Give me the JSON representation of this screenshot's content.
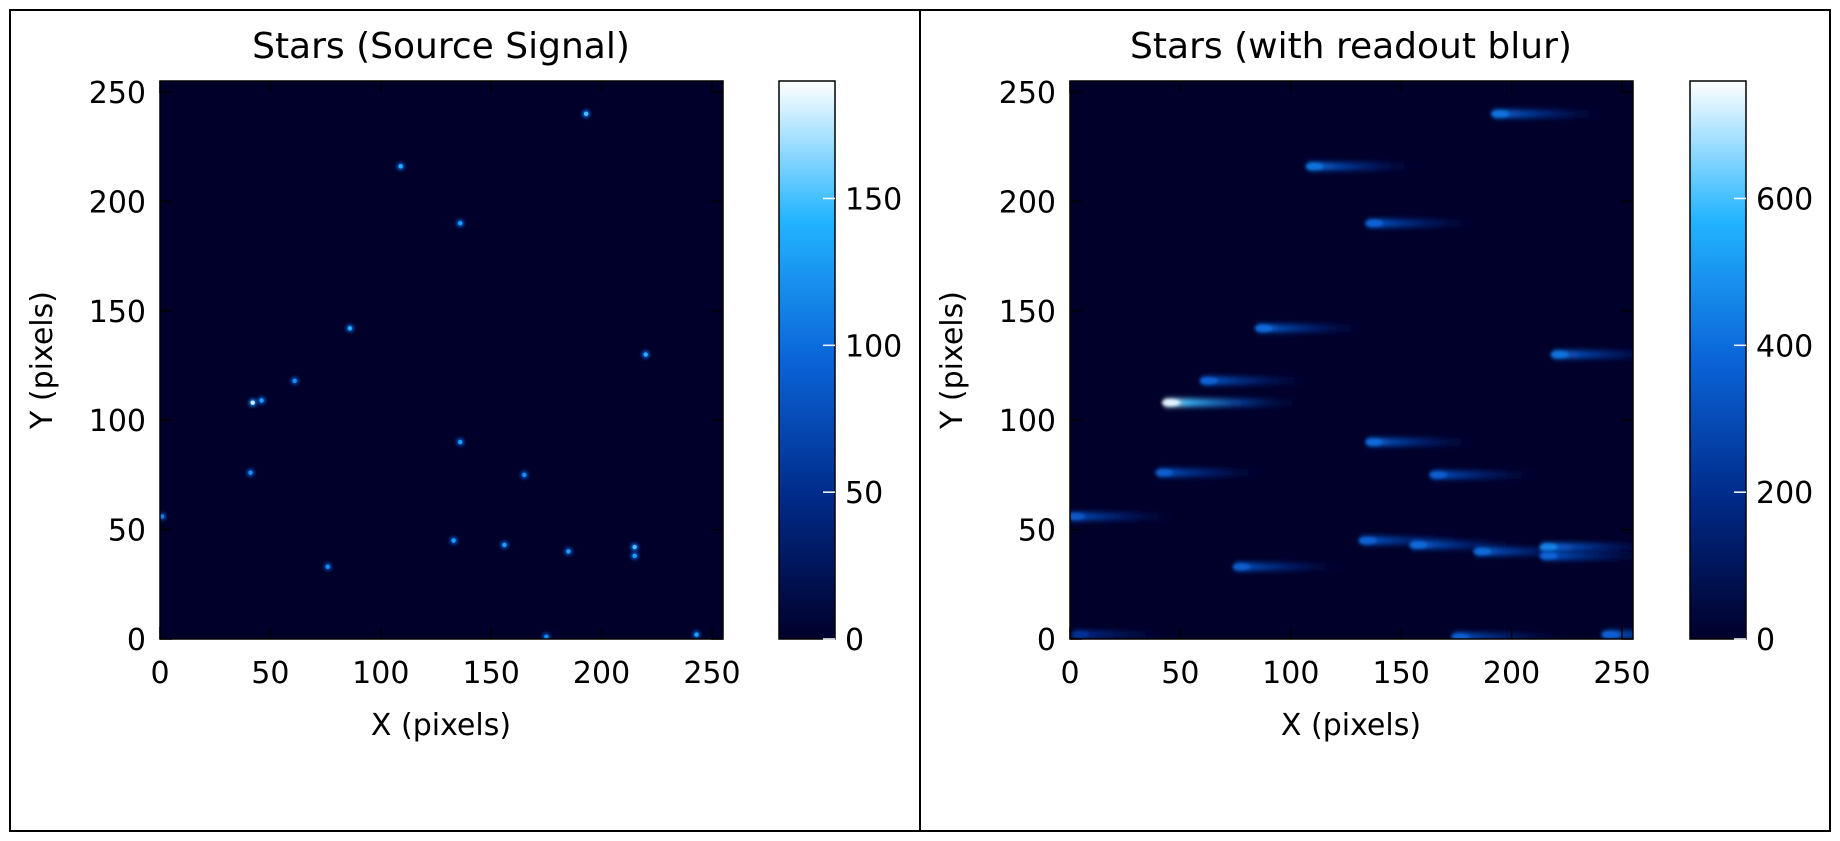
{
  "chart_data": [
    {
      "type": "heatmap",
      "title": "Stars (Source Signal)",
      "xlabel": "X (pixels)",
      "ylabel": "Y (pixels)",
      "xlim": [
        0,
        255
      ],
      "ylim": [
        0,
        255
      ],
      "xticks": [
        0,
        50,
        100,
        150,
        200,
        250
      ],
      "yticks": [
        0,
        50,
        100,
        150,
        200,
        250
      ],
      "colorbar": {
        "min": 0,
        "max": 190,
        "ticks": [
          0,
          50,
          100,
          150
        ]
      },
      "colormap": [
        "#00002a",
        "#002a88",
        "#0a64d8",
        "#22b4ff",
        "#ffffff"
      ],
      "background_color": "#00002a",
      "blur": false,
      "stars": [
        {
          "x": 193,
          "y": 240,
          "v": 150
        },
        {
          "x": 109,
          "y": 216,
          "v": 140
        },
        {
          "x": 136,
          "y": 190,
          "v": 130
        },
        {
          "x": 86,
          "y": 142,
          "v": 140
        },
        {
          "x": 220,
          "y": 130,
          "v": 140
        },
        {
          "x": 61,
          "y": 118,
          "v": 120
        },
        {
          "x": 42,
          "y": 108,
          "v": 180
        },
        {
          "x": 46,
          "y": 109,
          "v": 130
        },
        {
          "x": 136,
          "y": 90,
          "v": 130
        },
        {
          "x": 41,
          "y": 76,
          "v": 120
        },
        {
          "x": 165,
          "y": 75,
          "v": 120
        },
        {
          "x": 1,
          "y": 56,
          "v": 110
        },
        {
          "x": 133,
          "y": 45,
          "v": 130
        },
        {
          "x": 156,
          "y": 43,
          "v": 130
        },
        {
          "x": 185,
          "y": 40,
          "v": 130
        },
        {
          "x": 215,
          "y": 42,
          "v": 150
        },
        {
          "x": 215,
          "y": 38,
          "v": 130
        },
        {
          "x": 76,
          "y": 33,
          "v": 120
        },
        {
          "x": 175,
          "y": 1,
          "v": 120
        },
        {
          "x": 243,
          "y": 2,
          "v": 130
        }
      ]
    },
    {
      "type": "heatmap",
      "title": "Stars (with readout blur)",
      "xlabel": "X (pixels)",
      "ylabel": "Y (pixels)",
      "xlim": [
        0,
        255
      ],
      "ylim": [
        0,
        255
      ],
      "xticks": [
        0,
        50,
        100,
        150,
        200,
        250
      ],
      "yticks": [
        0,
        50,
        100,
        150,
        200,
        250
      ],
      "colorbar": {
        "min": 0,
        "max": 760,
        "ticks": [
          0,
          200,
          400,
          600
        ]
      },
      "colormap": [
        "#00002a",
        "#002a88",
        "#0a64d8",
        "#22b4ff",
        "#ffffff"
      ],
      "background_color": "#00002a",
      "blur": true,
      "stars": [
        {
          "x": 193,
          "y": 240,
          "v": 420
        },
        {
          "x": 109,
          "y": 216,
          "v": 420
        },
        {
          "x": 136,
          "y": 190,
          "v": 380
        },
        {
          "x": 86,
          "y": 142,
          "v": 400
        },
        {
          "x": 220,
          "y": 130,
          "v": 420
        },
        {
          "x": 61,
          "y": 118,
          "v": 380
        },
        {
          "x": 44,
          "y": 108,
          "v": 740
        },
        {
          "x": 136,
          "y": 90,
          "v": 400
        },
        {
          "x": 41,
          "y": 76,
          "v": 360
        },
        {
          "x": 165,
          "y": 75,
          "v": 360
        },
        {
          "x": 1,
          "y": 56,
          "v": 340
        },
        {
          "x": 133,
          "y": 45,
          "v": 380
        },
        {
          "x": 156,
          "y": 43,
          "v": 400
        },
        {
          "x": 185,
          "y": 40,
          "v": 400
        },
        {
          "x": 215,
          "y": 42,
          "v": 460
        },
        {
          "x": 215,
          "y": 38,
          "v": 380
        },
        {
          "x": 76,
          "y": 33,
          "v": 360
        },
        {
          "x": 175,
          "y": 1,
          "v": 360
        },
        {
          "x": 243,
          "y": 2,
          "v": 380
        },
        {
          "x": 3,
          "y": 2,
          "v": 220
        }
      ]
    }
  ]
}
